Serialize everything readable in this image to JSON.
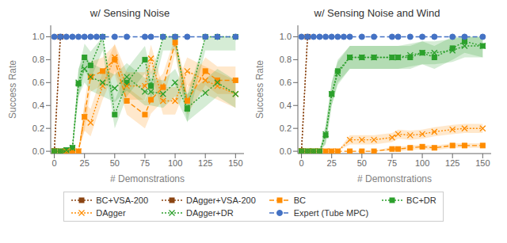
{
  "chart_data": [
    {
      "type": "line",
      "title": "w/ Sensing Noise",
      "xlabel": "# Demonstrations",
      "ylabel": "Success Rate",
      "xlim": [
        -3,
        157
      ],
      "ylim": [
        -0.02,
        1.1
      ],
      "xticks": [
        0,
        25,
        50,
        75,
        100,
        125,
        150
      ],
      "yticks": [
        {
          "value": 0,
          "label": "0.0"
        },
        0.2,
        0.4,
        0.6,
        0.8,
        {
          "value": 1,
          "label": "1.0"
        }
      ],
      "grid": false,
      "legend": "bottom",
      "series": [
        {
          "name": "BC+VSA-200",
          "color": "#8B4513",
          "marker": "square",
          "line_style": "dotted",
          "x": [
            0,
            5
          ],
          "values": [
            0.0,
            1.0
          ]
        },
        {
          "name": "DAgger+VSA-200",
          "color": "#8B4513",
          "marker": "square",
          "line_style": "dotted",
          "x": [
            0,
            5
          ],
          "values": [
            0.0,
            1.0
          ]
        },
        {
          "name": "BC",
          "color": "#FF8C00",
          "marker": "square",
          "line_style": "dashed",
          "x": [
            0,
            5,
            10,
            15,
            20,
            25,
            30,
            40,
            50,
            60,
            75,
            80,
            90,
            100,
            110,
            125,
            135,
            150
          ],
          "values": [
            0.0,
            0.0,
            0.0,
            0.0,
            0.0,
            0.3,
            0.65,
            0.7,
            0.8,
            0.44,
            0.32,
            0.45,
            0.56,
            0.95,
            0.44,
            0.7,
            0.62,
            0.62
          ],
          "lower": [
            0.0,
            0.0,
            0.0,
            0.0,
            0.0,
            0.18,
            0.52,
            0.58,
            0.67,
            0.32,
            0.2,
            0.33,
            0.44,
            0.85,
            0.32,
            0.58,
            0.5,
            0.5
          ],
          "upper": [
            0.0,
            0.0,
            0.0,
            0.0,
            0.0,
            0.42,
            0.78,
            0.82,
            0.93,
            0.56,
            0.44,
            0.57,
            0.68,
            1.0,
            0.56,
            0.82,
            0.74,
            0.74
          ]
        },
        {
          "name": "BC+DR",
          "color": "#2CA02C",
          "marker": "square",
          "line_style": "dotted",
          "x": [
            0,
            5,
            10,
            15,
            20,
            25,
            30,
            40,
            50,
            60,
            75,
            80,
            90,
            100,
            110,
            125,
            135,
            150
          ],
          "values": [
            0.0,
            0.0,
            0.01,
            0.03,
            0.59,
            0.82,
            0.75,
            1.0,
            0.32,
            0.6,
            0.8,
            0.57,
            1.0,
            1.0,
            0.37,
            1.0,
            1.0,
            1.0
          ],
          "lower": [
            0.0,
            0.0,
            0.0,
            0.01,
            0.47,
            0.7,
            0.63,
            0.88,
            0.2,
            0.48,
            0.68,
            0.45,
            0.88,
            0.88,
            0.25,
            0.88,
            0.88,
            0.88
          ],
          "upper": [
            0.0,
            0.0,
            0.02,
            0.05,
            0.71,
            0.94,
            0.87,
            1.0,
            0.44,
            0.72,
            0.92,
            0.69,
            1.0,
            1.0,
            0.49,
            1.0,
            1.0,
            1.0
          ]
        },
        {
          "name": "DAgger",
          "color": "#FF8C00",
          "marker": "x",
          "line_style": "dotted",
          "x": [
            0,
            5,
            10,
            15,
            20,
            25,
            30,
            40,
            50,
            60,
            75,
            80,
            90,
            100,
            110,
            125,
            135,
            150
          ],
          "values": [
            0.0,
            0.0,
            0.0,
            0.0,
            0.0,
            0.3,
            0.25,
            0.57,
            0.82,
            0.57,
            0.57,
            0.81,
            0.44,
            0.44,
            0.7,
            0.62,
            0.57,
            0.5
          ],
          "lower": [
            0.0,
            0.0,
            0.0,
            0.0,
            0.0,
            0.18,
            0.13,
            0.45,
            0.7,
            0.45,
            0.45,
            0.69,
            0.32,
            0.32,
            0.58,
            0.5,
            0.45,
            0.38
          ],
          "upper": [
            0.0,
            0.0,
            0.0,
            0.0,
            0.0,
            0.42,
            0.37,
            0.69,
            0.94,
            0.69,
            0.69,
            0.93,
            0.56,
            0.56,
            0.82,
            0.74,
            0.69,
            0.62
          ]
        },
        {
          "name": "DAgger+DR",
          "color": "#2CA02C",
          "marker": "x",
          "line_style": "dotted",
          "x": [
            0,
            5,
            10,
            15,
            20,
            25,
            30,
            40,
            50,
            60,
            75,
            80,
            90,
            100,
            110,
            125,
            135,
            150
          ],
          "values": [
            0.0,
            0.0,
            0.01,
            0.03,
            0.6,
            0.72,
            0.65,
            0.6,
            0.55,
            0.65,
            0.52,
            0.52,
            0.5,
            0.6,
            0.38,
            0.51,
            0.6,
            0.5
          ],
          "lower": [
            0.0,
            0.0,
            0.0,
            0.01,
            0.48,
            0.6,
            0.53,
            0.48,
            0.43,
            0.53,
            0.4,
            0.4,
            0.38,
            0.48,
            0.26,
            0.39,
            0.48,
            0.38
          ],
          "upper": [
            0.0,
            0.0,
            0.02,
            0.05,
            0.72,
            0.84,
            0.77,
            0.72,
            0.67,
            0.77,
            0.64,
            0.64,
            0.62,
            0.72,
            0.5,
            0.63,
            0.72,
            0.62
          ]
        },
        {
          "name": "Expert (Tube MPC)",
          "color": "#4472C4",
          "marker": "circle",
          "line_style": "dashed",
          "x": [
            0,
            5,
            10,
            15,
            20,
            25,
            30,
            35,
            40,
            50,
            60,
            75,
            80,
            90,
            100,
            110,
            125,
            135,
            150
          ],
          "values": [
            1.0,
            1.0,
            1.0,
            1.0,
            1.0,
            1.0,
            1.0,
            1.0,
            1.0,
            1.0,
            1.0,
            1.0,
            1.0,
            1.0,
            1.0,
            1.0,
            1.0,
            1.0,
            1.0
          ]
        }
      ]
    },
    {
      "type": "line",
      "title": "w/ Sensing Noise and Wind",
      "xlabel": "# Demonstrations",
      "ylabel": "Success Rate",
      "xlim": [
        -3,
        157
      ],
      "ylim": [
        -0.02,
        1.1
      ],
      "xticks": [
        0,
        25,
        50,
        75,
        100,
        125,
        150
      ],
      "yticks": [
        {
          "value": 0,
          "label": "0.0"
        },
        0.2,
        0.4,
        0.6,
        0.8,
        {
          "value": 1,
          "label": "1.0"
        }
      ],
      "grid": false,
      "legend": "bottom",
      "series": [
        {
          "name": "BC+VSA-200",
          "color": "#8B4513",
          "marker": "square",
          "line_style": "dotted",
          "x": [
            0,
            5
          ],
          "values": [
            0.0,
            1.0
          ]
        },
        {
          "name": "DAgger+VSA-200",
          "color": "#8B4513",
          "marker": "square",
          "line_style": "dotted",
          "x": [
            0,
            5
          ],
          "values": [
            0.0,
            1.0
          ]
        },
        {
          "name": "BC",
          "color": "#FF8C00",
          "marker": "square",
          "line_style": "dashed",
          "x": [
            0,
            5,
            10,
            15,
            20,
            25,
            30,
            40,
            50,
            60,
            75,
            80,
            90,
            100,
            110,
            125,
            135,
            150
          ],
          "values": [
            0.0,
            0.0,
            0.0,
            0.0,
            0.0,
            0.0,
            0.0,
            0.0,
            0.0,
            0.0,
            0.02,
            0.02,
            0.03,
            0.04,
            0.03,
            0.05,
            0.05,
            0.05
          ],
          "lower": [
            0.0,
            0.0,
            0.0,
            0.0,
            0.0,
            0.0,
            0.0,
            0.0,
            0.0,
            0.0,
            0.0,
            0.0,
            0.01,
            0.02,
            0.01,
            0.03,
            0.03,
            0.03
          ],
          "upper": [
            0.0,
            0.0,
            0.0,
            0.0,
            0.0,
            0.0,
            0.0,
            0.0,
            0.0,
            0.0,
            0.04,
            0.04,
            0.05,
            0.06,
            0.05,
            0.07,
            0.07,
            0.07
          ]
        },
        {
          "name": "BC+DR",
          "color": "#2CA02C",
          "marker": "square",
          "line_style": "dotted",
          "x": [
            0,
            5,
            10,
            15,
            20,
            25,
            30,
            40,
            50,
            60,
            75,
            80,
            90,
            100,
            110,
            125,
            135,
            150
          ],
          "values": [
            0.0,
            0.0,
            0.0,
            0.0,
            0.14,
            0.5,
            0.7,
            0.82,
            0.82,
            0.82,
            0.82,
            0.82,
            0.82,
            0.86,
            0.82,
            0.9,
            0.96,
            0.92
          ],
          "lower": [
            0.0,
            0.0,
            0.0,
            0.0,
            0.06,
            0.4,
            0.6,
            0.72,
            0.72,
            0.72,
            0.72,
            0.72,
            0.72,
            0.76,
            0.72,
            0.8,
            0.86,
            0.82
          ],
          "upper": [
            0.0,
            0.0,
            0.0,
            0.0,
            0.22,
            0.6,
            0.8,
            0.92,
            0.92,
            0.92,
            0.92,
            0.92,
            0.92,
            0.96,
            0.92,
            1.0,
            1.0,
            1.0
          ]
        },
        {
          "name": "DAgger",
          "color": "#FF8C00",
          "marker": "x",
          "line_style": "dotted",
          "x": [
            0,
            5,
            10,
            15,
            20,
            25,
            30,
            40,
            50,
            60,
            75,
            80,
            90,
            100,
            110,
            125,
            135,
            150
          ],
          "values": [
            0.0,
            0.0,
            0.0,
            0.0,
            0.0,
            0.0,
            0.0,
            0.1,
            0.1,
            0.1,
            0.12,
            0.15,
            0.14,
            0.15,
            0.17,
            0.19,
            0.2,
            0.2
          ],
          "lower": [
            0.0,
            0.0,
            0.0,
            0.0,
            0.0,
            0.0,
            0.0,
            0.06,
            0.06,
            0.06,
            0.08,
            0.11,
            0.1,
            0.11,
            0.13,
            0.15,
            0.16,
            0.16
          ],
          "upper": [
            0.0,
            0.0,
            0.0,
            0.0,
            0.0,
            0.0,
            0.0,
            0.14,
            0.14,
            0.14,
            0.16,
            0.19,
            0.18,
            0.19,
            0.21,
            0.23,
            0.24,
            0.24
          ]
        },
        {
          "name": "DAgger+DR",
          "color": "#2CA02C",
          "marker": "x",
          "line_style": "dotted",
          "x": [
            0,
            5,
            10,
            15,
            20,
            25,
            30,
            40,
            50,
            60,
            75,
            80,
            90,
            100,
            110,
            125,
            135,
            150
          ],
          "values": [
            0.0,
            0.0,
            0.0,
            0.0,
            0.15,
            0.5,
            0.68,
            0.82,
            0.82,
            0.82,
            0.82,
            0.82,
            0.84,
            0.86,
            0.86,
            0.88,
            0.92,
            0.92
          ],
          "lower": [
            0.0,
            0.0,
            0.0,
            0.0,
            0.07,
            0.4,
            0.58,
            0.72,
            0.72,
            0.72,
            0.72,
            0.72,
            0.74,
            0.76,
            0.76,
            0.78,
            0.82,
            0.82
          ],
          "upper": [
            0.0,
            0.0,
            0.0,
            0.0,
            0.23,
            0.6,
            0.78,
            0.92,
            0.92,
            0.92,
            0.92,
            0.92,
            0.94,
            0.96,
            0.96,
            0.98,
            1.0,
            1.0
          ]
        },
        {
          "name": "Expert (Tube MPC)",
          "color": "#4472C4",
          "marker": "circle",
          "line_style": "dashed",
          "x": [
            0,
            5,
            10,
            15,
            20,
            25,
            30,
            35,
            40,
            50,
            60,
            75,
            80,
            90,
            100,
            110,
            125,
            135,
            150
          ],
          "values": [
            1.0,
            1.0,
            1.0,
            1.0,
            1.0,
            1.0,
            1.0,
            1.0,
            1.0,
            1.0,
            1.0,
            1.0,
            1.0,
            1.0,
            1.0,
            1.0,
            1.0,
            1.0,
            1.0
          ]
        }
      ]
    }
  ]
}
